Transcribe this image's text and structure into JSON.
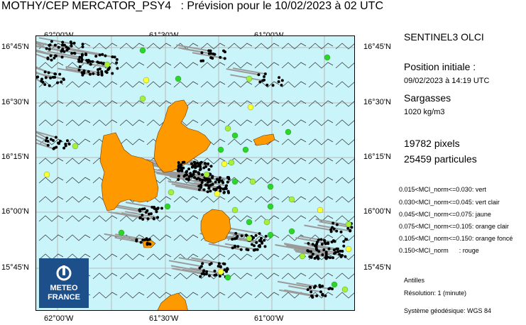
{
  "header": {
    "title": "MOTHY/CEP MERCATOR_PSY4   : Prévision pour le 10/02/2023 à 02 UTC"
  },
  "axes": {
    "top_lon": [
      "62°00'W",
      "61°30'W",
      "61°00'W"
    ],
    "bottom_lon": [
      "62°00'W",
      "61°30'W",
      "61°00'W"
    ],
    "left_lat": [
      "16°45'N",
      "16°30'N",
      "16°15'N",
      "16°00'N",
      "15°45'N"
    ],
    "right_lat": [
      "16°45'N",
      "16°30'N",
      "16°15'N",
      "16°00'N",
      "15°45'N"
    ]
  },
  "info": {
    "source": "SENTINEL3 OLCI",
    "position_label": "Position initiale :",
    "position_date": "09/02/2023 à 14:19 UTC",
    "species": "Sargasses",
    "density": "1020 kg/m3",
    "pixels": "19782  pixels",
    "particles": "25459  particules"
  },
  "legend": [
    {
      "text": "0.015<MCI_norm<=0.030: vert",
      "color": "#2ad62a"
    },
    {
      "text": "0.030<MCI_norm<=0.045: vert clair",
      "color": "#a6f03c"
    },
    {
      "text": "0.045<MCI_norm<=0.075: jaune",
      "color": "#ffff33"
    },
    {
      "text": "0.075<MCI_norm<=0.105: orange clair",
      "color": "#ffd27f"
    },
    {
      "text": "0.105<MCI_norm<=0.150: orange foncé",
      "color": "#ff9900"
    },
    {
      "text": "0.150<MCI_norm      : rouge",
      "color": "#ff0000"
    }
  ],
  "footer": {
    "region": "Antilles",
    "resolution": "Résolution: 1 (minute)",
    "geodetic": "Système géodésique: WGS 84"
  },
  "logo": {
    "line1": "METEO",
    "line2": "FRANCE",
    "icon": "meteo-france-logo-icon"
  },
  "colors": {
    "sea": "#c9f5fa",
    "land": "#ff9900",
    "particles_black": "#000000",
    "track_gray": "#9a9a9a"
  }
}
